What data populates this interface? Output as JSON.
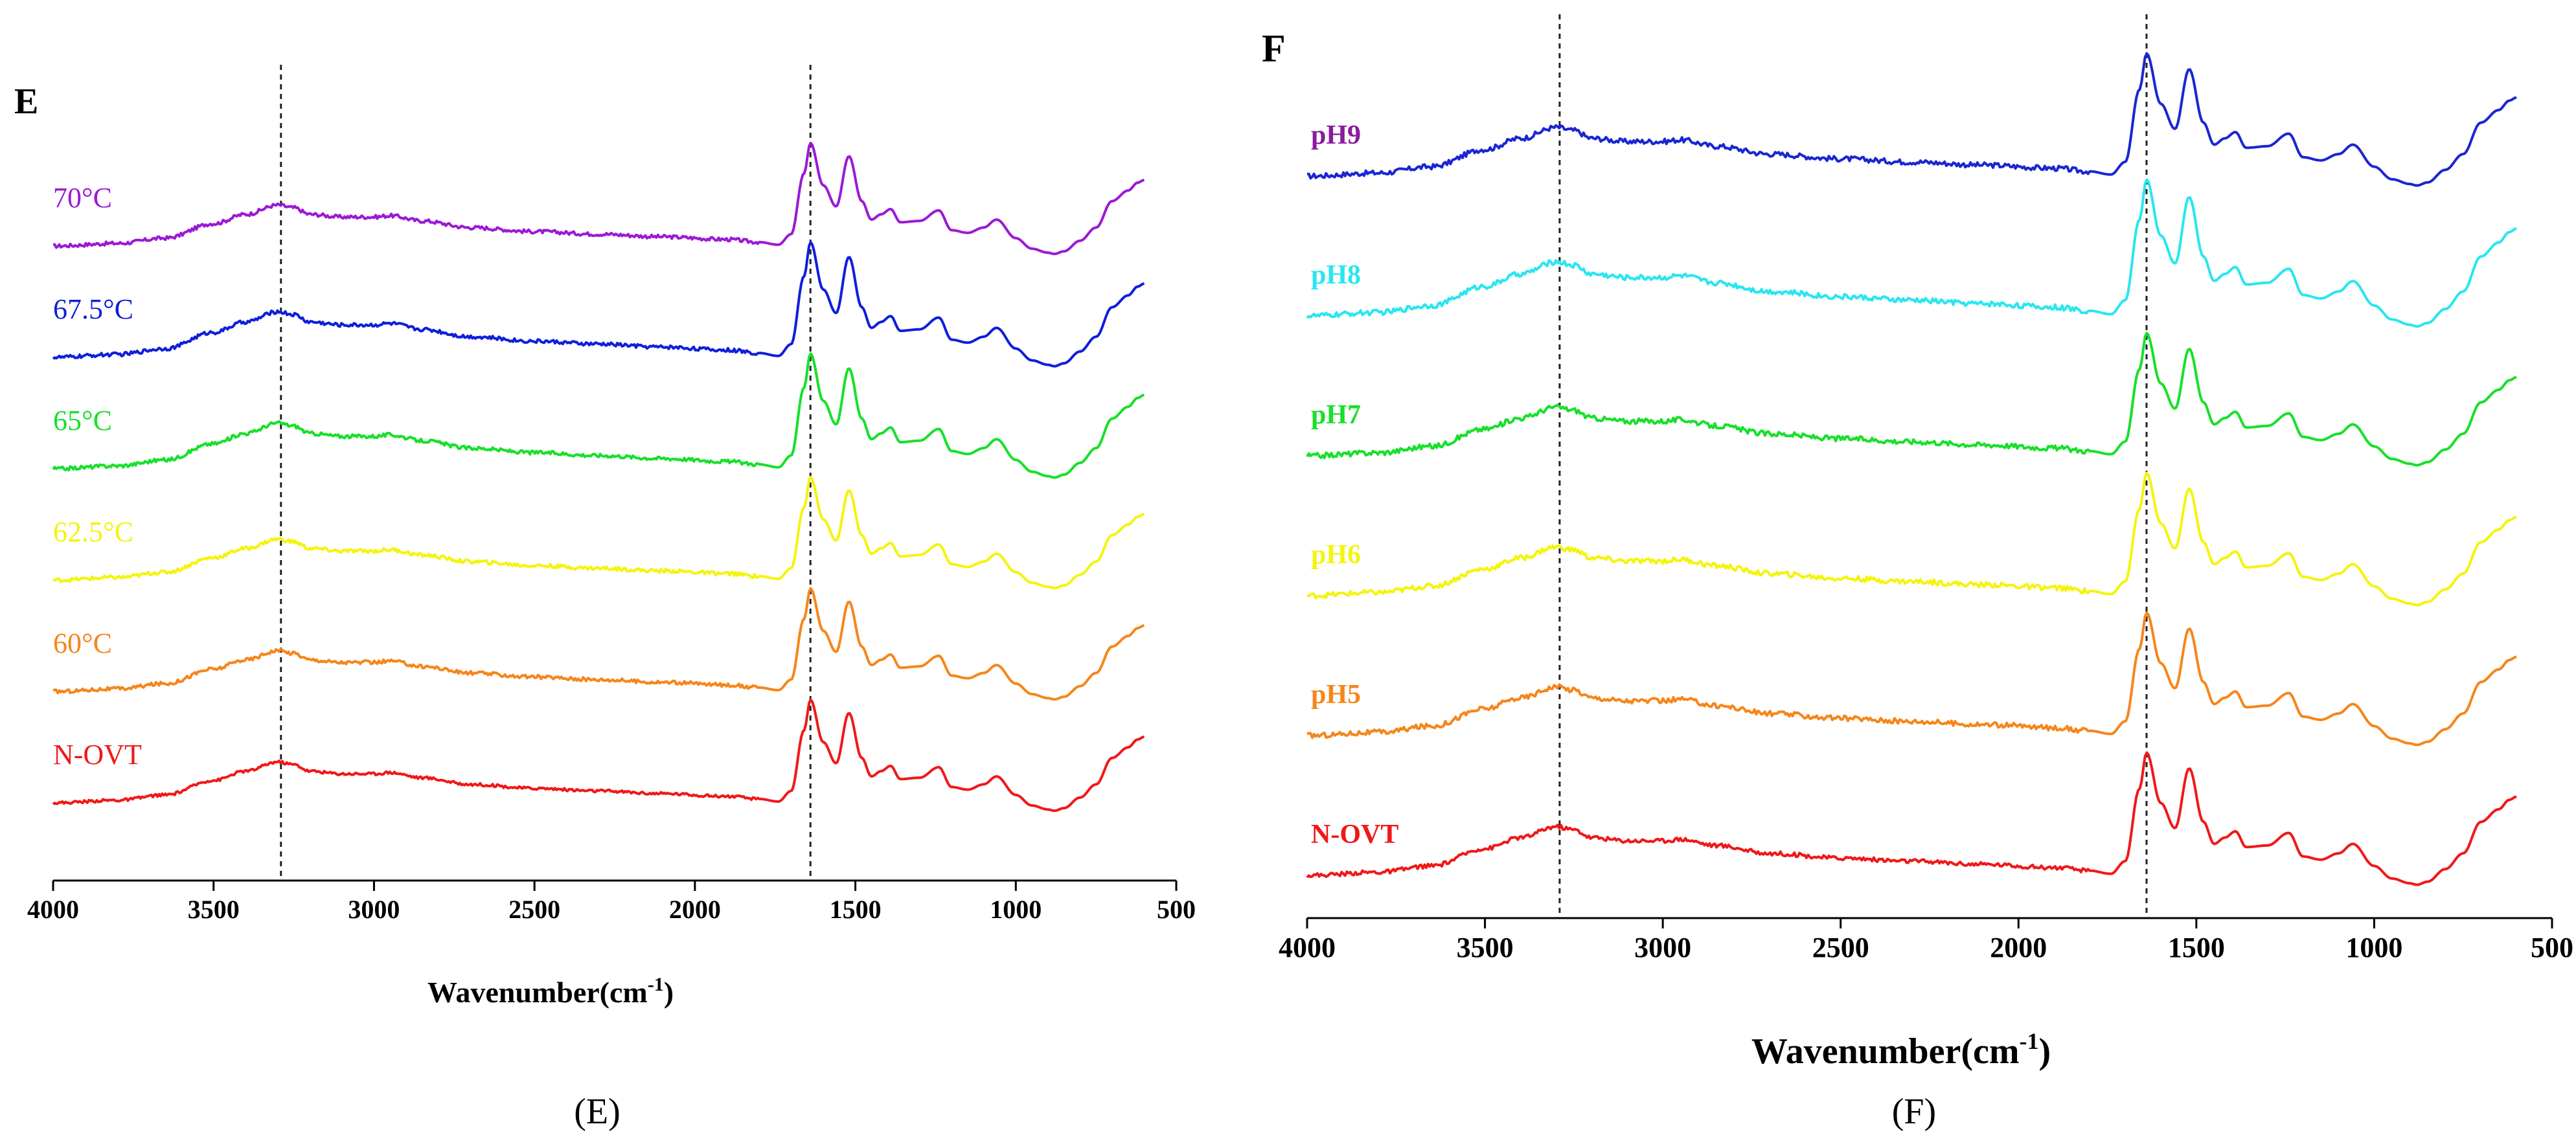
{
  "chart_data": [
    {
      "id": "E",
      "type": "line",
      "panel_label": "E",
      "caption": "(E)",
      "title": "",
      "xlabel_main": "Wavenumber(cm",
      "xlabel_sup": "-1",
      "xlabel_end": ")",
      "ylabel": "",
      "xlim": [
        4000,
        500
      ],
      "xticks": [
        4000,
        3500,
        3000,
        2500,
        2000,
        1500,
        1000,
        500
      ],
      "reference_lines": [
        3290,
        1640
      ],
      "grid": false,
      "shape_points": [
        4000,
        3800,
        3650,
        3500,
        3400,
        3300,
        3200,
        3100,
        3000,
        2950,
        2850,
        2700,
        2500,
        2300,
        2100,
        1900,
        1800,
        1740,
        1700,
        1660,
        1640,
        1600,
        1560,
        1520,
        1480,
        1450,
        1420,
        1390,
        1360,
        1300,
        1240,
        1200,
        1150,
        1100,
        1060,
        1000,
        950,
        900,
        880,
        850,
        800,
        750,
        700,
        650,
        620,
        600
      ],
      "series": [
        {
          "name": "70°C",
          "color": "#9b19d6",
          "offset": 5,
          "scale": 0.85,
          "noise": 0.004
        },
        {
          "name": "67.5°C",
          "color": "#0f1edc",
          "offset": 4,
          "scale": 0.95,
          "noise": 0.004
        },
        {
          "name": "65°C",
          "color": "#17e02a",
          "offset": 3,
          "scale": 0.95,
          "noise": 0.004
        },
        {
          "name": "62.5°C",
          "color": "#f4f40c",
          "offset": 2,
          "scale": 0.85,
          "noise": 0.004
        },
        {
          "name": "60°C",
          "color": "#f5861b",
          "offset": 1,
          "scale": 0.85,
          "noise": 0.004
        },
        {
          "name": "N-OVT",
          "color": "#f01818",
          "offset": 0,
          "scale": 0.85,
          "noise": 0.003
        }
      ]
    },
    {
      "id": "F",
      "type": "line",
      "panel_label": "F",
      "caption": "(F)",
      "title": "",
      "xlabel_main": "Wavenumber(cm",
      "xlabel_sup": "-1",
      "xlabel_end": ")",
      "ylabel": "",
      "xlim": [
        4000,
        500
      ],
      "xticks": [
        4000,
        3500,
        3000,
        2500,
        2000,
        1500,
        1000,
        500
      ],
      "reference_lines": [
        3290,
        1640
      ],
      "grid": false,
      "series": [
        {
          "name": "pH9",
          "color": "#1a26d2",
          "label_color": "#8a1a9e",
          "offset": 5,
          "scale": 0.9,
          "noise": 0.005
        },
        {
          "name": "pH8",
          "color": "#28e6f0",
          "label_color": "#28e6f0",
          "offset": 4,
          "scale": 1.0,
          "noise": 0.005
        },
        {
          "name": "pH7",
          "color": "#17e02a",
          "label_color": "#17e02a",
          "offset": 3,
          "scale": 0.9,
          "noise": 0.005
        },
        {
          "name": "pH6",
          "color": "#f4f40c",
          "label_color": "#f4f40c",
          "offset": 2,
          "scale": 0.9,
          "noise": 0.005
        },
        {
          "name": "pH5",
          "color": "#f5861b",
          "label_color": "#f5861b",
          "offset": 1,
          "scale": 0.9,
          "noise": 0.005
        },
        {
          "name": "N-OVT",
          "color": "#f01818",
          "label_color": "#f01818",
          "offset": 0,
          "scale": 0.9,
          "noise": 0.004
        }
      ]
    }
  ]
}
